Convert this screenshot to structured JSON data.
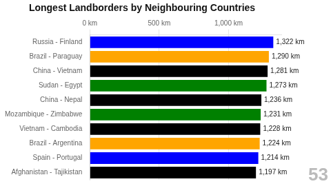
{
  "chart_data": {
    "type": "bar",
    "orientation": "horizontal",
    "title": "Longest Landborders by Neighbouring Countries",
    "categories": [
      "Russia - Finland",
      "Brazil - Paraguay",
      "China - Vietnam",
      "Sudan - Egypt",
      "China - Nepal",
      "Mozambique - Zimbabwe",
      "Vietnam - Cambodia",
      "Brazil - Argentina",
      "Spain - Portugal",
      "Afghanistan - Tajikistan"
    ],
    "values": [
      1322,
      1290,
      1281,
      1273,
      1236,
      1231,
      1228,
      1224,
      1214,
      1197
    ],
    "value_labels": [
      "1,322 km",
      "1,290 km",
      "1,281 km",
      "1,273 km",
      "1,236 km",
      "1,231 km",
      "1,228 km",
      "1,224 km",
      "1,214 km",
      "1,197 km"
    ],
    "data_labels": true,
    "colors": [
      "#0000FF",
      "#FFA500",
      "#000000",
      "#008000",
      "#000000",
      "#008000",
      "#000000",
      "#FFA500",
      "#0000FF",
      "#000000"
    ],
    "xlim": [
      0,
      1380
    ],
    "xticks": [
      {
        "value": 0,
        "label": "0 km"
      },
      {
        "value": 500,
        "label": "500 km"
      },
      {
        "value": 1000,
        "label": "1,000 km"
      }
    ],
    "grid": true,
    "annotations": [
      "53"
    ]
  }
}
